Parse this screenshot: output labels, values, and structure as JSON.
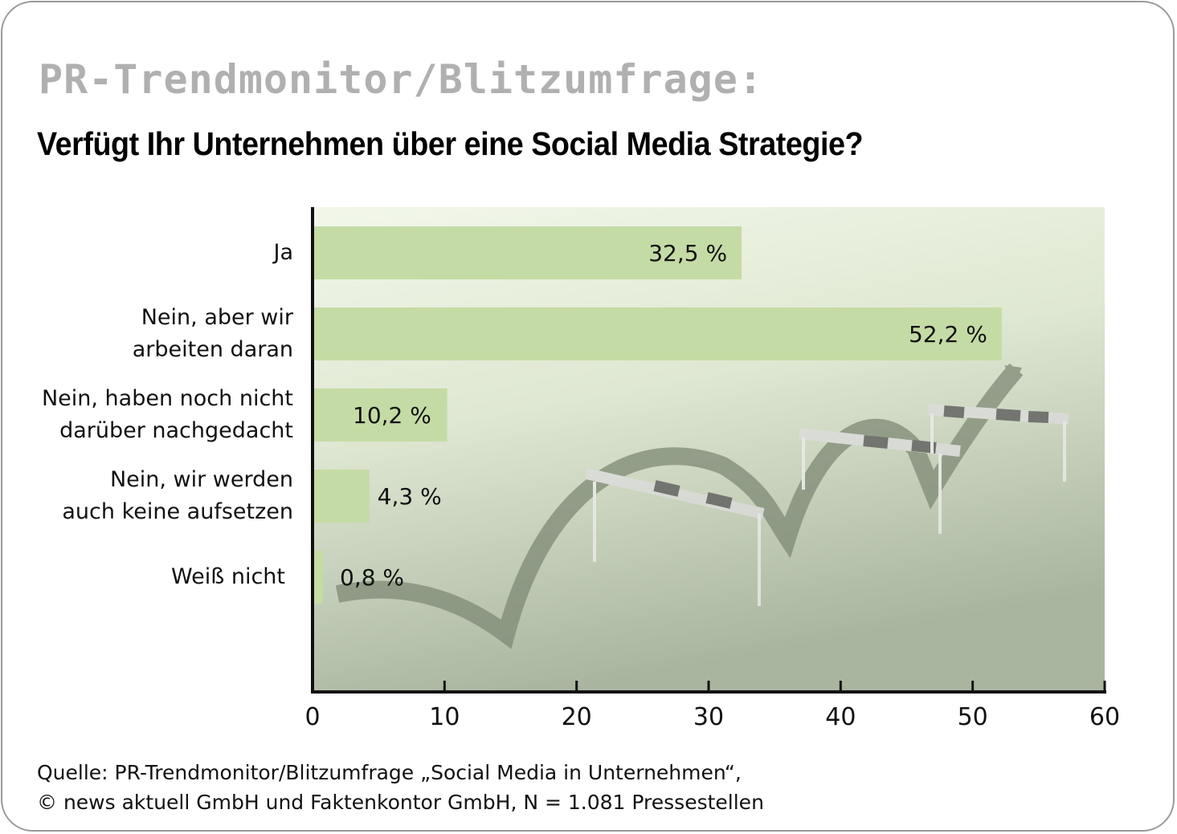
{
  "supertitle": "PR-Trendmonitor/Blitzumfrage:",
  "chart_data": {
    "type": "bar",
    "orientation": "horizontal",
    "title": "Verfügt Ihr Unternehmen über eine Social Media Strategie?",
    "categories": [
      [
        "Ja"
      ],
      [
        "Nein, aber wir",
        "arbeiten daran"
      ],
      [
        "Nein, haben noch nicht",
        "darüber nachgedacht"
      ],
      [
        "Nein, wir werden",
        "auch keine aufsetzen"
      ],
      [
        "Weiß nicht"
      ]
    ],
    "values": [
      32.5,
      52.2,
      10.2,
      4.3,
      0.8
    ],
    "value_labels": [
      "32,5 %",
      "52,2 %",
      "10,2 %",
      "4,3 %",
      "0,8 %"
    ],
    "xlim": [
      0,
      60
    ],
    "xticks": [
      "0",
      "10",
      "20",
      "30",
      "40",
      "50",
      "60"
    ],
    "grid": false,
    "bar_color": "#c5dba5",
    "background": "hurdles-with-arrow-image"
  },
  "source": {
    "line1": "Quelle: PR-Trendmonitor/Blitzumfrage „Social Media in Unternehmen“,",
    "line2": "© news aktuell GmbH und Faktenkontor GmbH, N = 1.081 Pressestellen"
  }
}
